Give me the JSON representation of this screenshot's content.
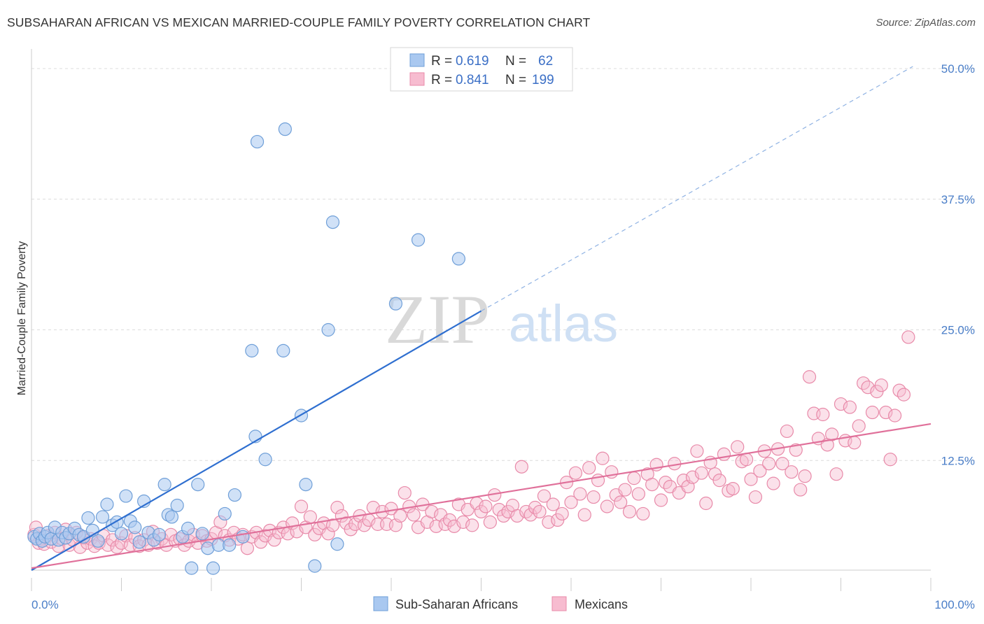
{
  "title": "SUBSAHARAN AFRICAN VS MEXICAN MARRIED-COUPLE FAMILY POVERTY CORRELATION CHART",
  "source": "Source: ZipAtlas.com",
  "watermark": {
    "zip": "ZIP",
    "atlas": "atlas"
  },
  "legend_top": {
    "rows": [
      {
        "r_label": "R =",
        "r_value": "0.619",
        "n_label": "N =",
        "n_value": "62",
        "color": "#a9c8f0",
        "stroke": "#6f9fd8"
      },
      {
        "r_label": "R =",
        "r_value": "0.841",
        "n_label": "N =",
        "n_value": "199",
        "color": "#f7bcd0",
        "stroke": "#e88aa9"
      }
    ]
  },
  "legend_bottom": [
    {
      "label": "Sub-Saharan Africans",
      "color": "#a9c8f0",
      "stroke": "#6f9fd8"
    },
    {
      "label": "Mexicans",
      "color": "#f7bcd0",
      "stroke": "#e88aa9"
    }
  ],
  "chart_data": {
    "type": "scatter",
    "title": "SUBSAHARAN AFRICAN VS MEXICAN MARRIED-COUPLE FAMILY POVERTY CORRELATION CHART",
    "xlabel": "",
    "ylabel": "Married-Couple Family Poverty",
    "xlim": [
      0,
      100
    ],
    "ylim": [
      0,
      52
    ],
    "x_tick_labels": [
      "0.0%",
      "100.0%"
    ],
    "y_ticks": [
      12.5,
      25.0,
      37.5,
      50.0
    ],
    "y_tick_labels": [
      "12.5%",
      "25.0%",
      "37.5%",
      "50.0%"
    ],
    "grid": "horizontal dashed",
    "legend_position": "top-center",
    "series": [
      {
        "name": "Sub-Saharan Africans",
        "color": "#a9c8f0",
        "stroke": "#6f9fd8",
        "trend": {
          "x0": 0,
          "y0": 2.0,
          "x1": 50,
          "y1": 26.8,
          "dashed_to_x": 98,
          "dashed_to_y": 50.2,
          "color": "#2f6fd0"
        },
        "points": [
          [
            0.3,
            5.2
          ],
          [
            0.6,
            5.0
          ],
          [
            0.9,
            5.5
          ],
          [
            1.2,
            4.8
          ],
          [
            1.5,
            5.2
          ],
          [
            1.8,
            5.6
          ],
          [
            2.2,
            5.0
          ],
          [
            2.6,
            6.1
          ],
          [
            3.0,
            4.9
          ],
          [
            3.4,
            5.6
          ],
          [
            3.8,
            5.1
          ],
          [
            4.2,
            5.5
          ],
          [
            4.8,
            6.0
          ],
          [
            5.3,
            5.4
          ],
          [
            5.8,
            5.2
          ],
          [
            6.3,
            7.0
          ],
          [
            6.8,
            5.8
          ],
          [
            7.4,
            4.8
          ],
          [
            7.9,
            7.1
          ],
          [
            8.4,
            8.3
          ],
          [
            9.0,
            6.3
          ],
          [
            9.5,
            6.6
          ],
          [
            10.0,
            5.5
          ],
          [
            10.5,
            9.1
          ],
          [
            11.0,
            6.7
          ],
          [
            11.5,
            6.1
          ],
          [
            12.0,
            4.7
          ],
          [
            12.5,
            8.6
          ],
          [
            13.0,
            5.6
          ],
          [
            13.6,
            4.9
          ],
          [
            14.2,
            5.4
          ],
          [
            14.8,
            10.2
          ],
          [
            15.2,
            7.3
          ],
          [
            15.6,
            7.1
          ],
          [
            16.2,
            8.2
          ],
          [
            16.8,
            5.2
          ],
          [
            17.4,
            6.0
          ],
          [
            17.8,
            2.2
          ],
          [
            18.5,
            10.2
          ],
          [
            19.0,
            5.5
          ],
          [
            19.6,
            4.1
          ],
          [
            20.2,
            2.2
          ],
          [
            20.8,
            4.4
          ],
          [
            21.5,
            7.4
          ],
          [
            22.0,
            4.4
          ],
          [
            22.6,
            9.2
          ],
          [
            23.5,
            5.2
          ],
          [
            24.5,
            23.0
          ],
          [
            24.9,
            14.8
          ],
          [
            25.1,
            43.0
          ],
          [
            26.0,
            12.6
          ],
          [
            28.0,
            23.0
          ],
          [
            28.2,
            44.2
          ],
          [
            30.0,
            16.8
          ],
          [
            30.5,
            10.2
          ],
          [
            31.5,
            2.4
          ],
          [
            33.0,
            25.0
          ],
          [
            33.5,
            35.3
          ],
          [
            34.0,
            4.5
          ],
          [
            40.5,
            27.5
          ],
          [
            43.0,
            33.6
          ],
          [
            47.5,
            31.8
          ]
        ]
      },
      {
        "name": "Mexicans",
        "color": "#f7bcd0",
        "stroke": "#e88aa9",
        "trend": {
          "x0": 0,
          "y0": 2.2,
          "x1": 100,
          "y1": 16.0,
          "color": "#e0709a"
        },
        "points": [
          [
            0.3,
            5.4
          ],
          [
            0.5,
            6.1
          ],
          [
            0.8,
            4.6
          ],
          [
            1.1,
            5.0
          ],
          [
            1.4,
            4.5
          ],
          [
            1.8,
            5.3
          ],
          [
            2.2,
            4.7
          ],
          [
            2.6,
            5.6
          ],
          [
            3.0,
            4.3
          ],
          [
            3.4,
            5.0
          ],
          [
            3.8,
            5.9
          ],
          [
            4.2,
            4.4
          ],
          [
            4.6,
            4.9
          ],
          [
            5.0,
            5.6
          ],
          [
            5.4,
            4.2
          ],
          [
            5.8,
            5.1
          ],
          [
            6.2,
            4.6
          ],
          [
            6.6,
            5.0
          ],
          [
            7.0,
            4.3
          ],
          [
            7.5,
            4.6
          ],
          [
            8.0,
            5.3
          ],
          [
            8.5,
            4.4
          ],
          [
            9.0,
            4.9
          ],
          [
            9.5,
            4.2
          ],
          [
            10.0,
            4.6
          ],
          [
            10.5,
            5.3
          ],
          [
            11.0,
            4.4
          ],
          [
            11.5,
            5.1
          ],
          [
            12.0,
            4.3
          ],
          [
            12.5,
            4.9
          ],
          [
            13.0,
            4.4
          ],
          [
            13.5,
            5.7
          ],
          [
            14.0,
            4.6
          ],
          [
            14.5,
            5.0
          ],
          [
            15.0,
            4.4
          ],
          [
            15.5,
            5.4
          ],
          [
            16.0,
            4.8
          ],
          [
            16.5,
            5.0
          ],
          [
            17.0,
            4.4
          ],
          [
            17.5,
            4.8
          ],
          [
            18.0,
            5.4
          ],
          [
            18.5,
            4.6
          ],
          [
            19.0,
            5.3
          ],
          [
            19.5,
            4.8
          ],
          [
            20.0,
            5.0
          ],
          [
            20.5,
            5.6
          ],
          [
            21.0,
            6.6
          ],
          [
            21.5,
            5.3
          ],
          [
            22.0,
            4.9
          ],
          [
            22.5,
            5.6
          ],
          [
            23.0,
            5.0
          ],
          [
            23.5,
            5.4
          ],
          [
            24.0,
            4.1
          ],
          [
            24.5,
            5.2
          ],
          [
            25.0,
            5.6
          ],
          [
            25.5,
            4.7
          ],
          [
            26.0,
            5.3
          ],
          [
            26.5,
            5.8
          ],
          [
            27.0,
            4.9
          ],
          [
            27.5,
            5.6
          ],
          [
            28.0,
            6.1
          ],
          [
            28.5,
            5.5
          ],
          [
            29.0,
            6.5
          ],
          [
            29.5,
            5.7
          ],
          [
            30.0,
            8.1
          ],
          [
            30.5,
            6.1
          ],
          [
            31.0,
            7.1
          ],
          [
            31.5,
            5.4
          ],
          [
            32.0,
            6.0
          ],
          [
            32.5,
            6.5
          ],
          [
            33.0,
            5.5
          ],
          [
            33.5,
            6.3
          ],
          [
            34.0,
            8.0
          ],
          [
            34.5,
            7.2
          ],
          [
            35.0,
            6.5
          ],
          [
            35.5,
            5.9
          ],
          [
            36.0,
            6.4
          ],
          [
            36.5,
            7.2
          ],
          [
            37.0,
            6.3
          ],
          [
            37.5,
            6.8
          ],
          [
            38.0,
            8.0
          ],
          [
            38.5,
            6.4
          ],
          [
            39.0,
            7.6
          ],
          [
            39.5,
            6.4
          ],
          [
            40.0,
            7.9
          ],
          [
            40.5,
            6.3
          ],
          [
            41.0,
            7.2
          ],
          [
            41.5,
            9.4
          ],
          [
            42.0,
            8.1
          ],
          [
            42.5,
            7.3
          ],
          [
            43.0,
            6.1
          ],
          [
            43.5,
            8.3
          ],
          [
            44.0,
            6.6
          ],
          [
            44.5,
            7.6
          ],
          [
            45.0,
            6.2
          ],
          [
            45.5,
            7.3
          ],
          [
            46.0,
            6.4
          ],
          [
            46.5,
            6.8
          ],
          [
            47.0,
            6.2
          ],
          [
            47.5,
            8.3
          ],
          [
            48.0,
            6.6
          ],
          [
            48.5,
            7.8
          ],
          [
            49.0,
            6.3
          ],
          [
            49.5,
            8.4
          ],
          [
            50.0,
            7.6
          ],
          [
            50.5,
            8.1
          ],
          [
            51.0,
            6.6
          ],
          [
            51.5,
            9.2
          ],
          [
            52.0,
            7.8
          ],
          [
            52.5,
            7.2
          ],
          [
            53.0,
            7.6
          ],
          [
            53.5,
            8.2
          ],
          [
            54.0,
            7.2
          ],
          [
            54.5,
            11.9
          ],
          [
            55.0,
            7.6
          ],
          [
            55.5,
            7.3
          ],
          [
            56.0,
            8.0
          ],
          [
            56.5,
            7.6
          ],
          [
            57.0,
            9.1
          ],
          [
            57.5,
            6.6
          ],
          [
            58.0,
            8.3
          ],
          [
            58.5,
            6.8
          ],
          [
            59.0,
            7.4
          ],
          [
            59.5,
            10.4
          ],
          [
            60.0,
            8.5
          ],
          [
            60.5,
            11.3
          ],
          [
            61.0,
            9.3
          ],
          [
            61.5,
            7.3
          ],
          [
            62.0,
            11.8
          ],
          [
            62.5,
            9.0
          ],
          [
            63.0,
            10.6
          ],
          [
            63.5,
            12.7
          ],
          [
            64.0,
            8.1
          ],
          [
            64.5,
            11.4
          ],
          [
            65.0,
            9.2
          ],
          [
            65.5,
            8.5
          ],
          [
            66.0,
            9.7
          ],
          [
            66.5,
            7.6
          ],
          [
            67.0,
            10.8
          ],
          [
            67.5,
            9.3
          ],
          [
            68.0,
            7.4
          ],
          [
            68.5,
            11.2
          ],
          [
            69.0,
            10.2
          ],
          [
            69.5,
            12.1
          ],
          [
            70.0,
            8.7
          ],
          [
            70.5,
            10.4
          ],
          [
            71.0,
            10.0
          ],
          [
            71.5,
            12.2
          ],
          [
            72.0,
            9.4
          ],
          [
            72.5,
            10.6
          ],
          [
            73.0,
            10.0
          ],
          [
            73.5,
            10.9
          ],
          [
            74.0,
            13.4
          ],
          [
            74.5,
            11.3
          ],
          [
            75.0,
            8.4
          ],
          [
            75.5,
            12.3
          ],
          [
            76.0,
            11.2
          ],
          [
            76.5,
            10.6
          ],
          [
            77.0,
            13.1
          ],
          [
            77.5,
            9.6
          ],
          [
            78.0,
            9.8
          ],
          [
            78.5,
            13.8
          ],
          [
            79.0,
            12.4
          ],
          [
            79.5,
            12.6
          ],
          [
            80.0,
            10.7
          ],
          [
            80.5,
            9.0
          ],
          [
            81.0,
            11.5
          ],
          [
            81.5,
            13.4
          ],
          [
            82.0,
            12.2
          ],
          [
            82.5,
            10.3
          ],
          [
            83.0,
            13.6
          ],
          [
            83.5,
            12.2
          ],
          [
            84.0,
            15.3
          ],
          [
            84.5,
            11.4
          ],
          [
            85.0,
            13.5
          ],
          [
            85.5,
            9.7
          ],
          [
            86.0,
            11.0
          ],
          [
            86.5,
            20.5
          ],
          [
            87.0,
            17.0
          ],
          [
            87.5,
            14.6
          ],
          [
            88.0,
            16.9
          ],
          [
            88.5,
            14.0
          ],
          [
            89.0,
            15.0
          ],
          [
            89.5,
            11.2
          ],
          [
            90.0,
            17.9
          ],
          [
            90.5,
            14.4
          ],
          [
            91.0,
            17.6
          ],
          [
            91.5,
            14.2
          ],
          [
            92.0,
            15.8
          ],
          [
            92.5,
            19.9
          ],
          [
            93.0,
            19.5
          ],
          [
            93.5,
            17.1
          ],
          [
            94.0,
            19.1
          ],
          [
            94.5,
            19.7
          ],
          [
            95.0,
            17.1
          ],
          [
            95.5,
            12.6
          ],
          [
            96.0,
            16.8
          ],
          [
            96.5,
            19.2
          ],
          [
            97.0,
            18.8
          ],
          [
            97.5,
            24.3
          ]
        ]
      }
    ]
  }
}
